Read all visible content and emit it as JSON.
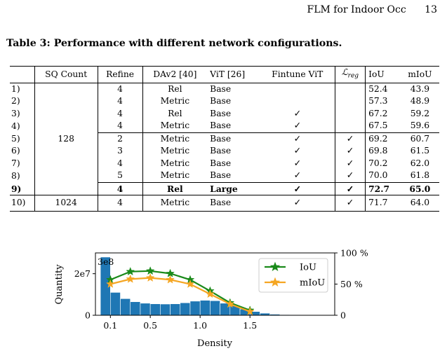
{
  "header": {
    "running_title": "FLM for Indoor Occ",
    "page_number": "13"
  },
  "table": {
    "caption": "Table 3: Performance with different network configurations.",
    "columns": [
      "",
      "SQ Count",
      "Refine",
      "DAv2 [40]",
      "ViT [26]",
      "Fintune ViT",
      "L_reg",
      "IoU",
      "mIoU"
    ],
    "sq_group_value": "128",
    "rows": [
      {
        "idx": "1)",
        "refine": "4",
        "dav2": "Rel",
        "vit": "Base",
        "ft": "",
        "lreg": "",
        "iou": "52.4",
        "miou": "43.9"
      },
      {
        "idx": "2)",
        "refine": "4",
        "dav2": "Metric",
        "vit": "Base",
        "ft": "",
        "lreg": "",
        "iou": "57.3",
        "miou": "48.9"
      },
      {
        "idx": "3)",
        "refine": "4",
        "dav2": "Rel",
        "vit": "Base",
        "ft": "✓",
        "lreg": "",
        "iou": "67.2",
        "miou": "59.2"
      },
      {
        "idx": "4)",
        "refine": "4",
        "dav2": "Metric",
        "vit": "Base",
        "ft": "✓",
        "lreg": "",
        "iou": "67.5",
        "miou": "59.6"
      },
      {
        "idx": "5)",
        "refine": "2",
        "dav2": "Metric",
        "vit": "Base",
        "ft": "✓",
        "lreg": "✓",
        "iou": "69.2",
        "miou": "60.7"
      },
      {
        "idx": "6)",
        "refine": "3",
        "dav2": "Metric",
        "vit": "Base",
        "ft": "✓",
        "lreg": "✓",
        "iou": "69.8",
        "miou": "61.5"
      },
      {
        "idx": "7)",
        "refine": "4",
        "dav2": "Metric",
        "vit": "Base",
        "ft": "✓",
        "lreg": "✓",
        "iou": "70.2",
        "miou": "62.0"
      },
      {
        "idx": "8)",
        "refine": "5",
        "dav2": "Metric",
        "vit": "Base",
        "ft": "✓",
        "lreg": "✓",
        "iou": "70.0",
        "miou": "61.8"
      },
      {
        "idx": "9)",
        "refine": "4",
        "dav2": "Rel",
        "vit": "Large",
        "ft": "✓",
        "lreg": "✓",
        "iou": "72.7",
        "miou": "65.0"
      }
    ],
    "last_row": {
      "idx": "10)",
      "sq": "1024",
      "refine": "4",
      "dav2": "Metric",
      "vit": "Base",
      "ft": "✓",
      "lreg": "✓",
      "iou": "71.7",
      "miou": "64.0"
    }
  },
  "chart_data": {
    "type": "bar",
    "xlabel": "Density",
    "ylabel": "Quantity",
    "x_ticks": [
      "0.1",
      "0.5",
      "1.0",
      "1.5"
    ],
    "y_left_ticks": [
      "0",
      "2e7"
    ],
    "left_annotation": "3e8",
    "y_right_ticks": [
      "0",
      "50 %",
      "100 %"
    ],
    "bar_color": "#1f77b4",
    "histogram": {
      "bin_width": 0.1,
      "bin_starts": [
        0.0,
        0.1,
        0.2,
        0.3,
        0.4,
        0.5,
        0.6,
        0.7,
        0.8,
        0.9,
        1.0,
        1.1,
        1.2,
        1.3,
        1.4,
        1.5,
        1.6,
        1.7,
        1.8,
        1.9,
        2.0,
        2.1,
        2.2
      ],
      "values": [
        28000000,
        11000000,
        8000000,
        6500000,
        5800000,
        5500000,
        5400000,
        5500000,
        6000000,
        6800000,
        7200000,
        7000000,
        5800000,
        4500000,
        3000000,
        1800000,
        1000000,
        500000,
        300000,
        200000,
        100000,
        80000,
        50000
      ]
    },
    "series": [
      {
        "name": "IoU",
        "color": "#1a8a1a",
        "marker": "star",
        "x": [
          0.1,
          0.3,
          0.5,
          0.7,
          0.9,
          1.1,
          1.3,
          1.5
        ],
        "y": [
          57,
          70,
          71,
          67,
          57,
          39,
          20,
          8
        ]
      },
      {
        "name": "mIoU",
        "color": "#f5a623",
        "marker": "star",
        "x": [
          0.1,
          0.3,
          0.5,
          0.7,
          0.9,
          1.1,
          1.3,
          1.5
        ],
        "y": [
          50,
          58,
          60,
          57,
          50,
          34,
          18,
          6
        ]
      }
    ],
    "legend_position": "top-right",
    "y_left_lim": [
      0,
      30000000
    ],
    "y_right_lim": [
      0,
      100
    ],
    "x_lim": [
      -0.05,
      2.35
    ]
  }
}
